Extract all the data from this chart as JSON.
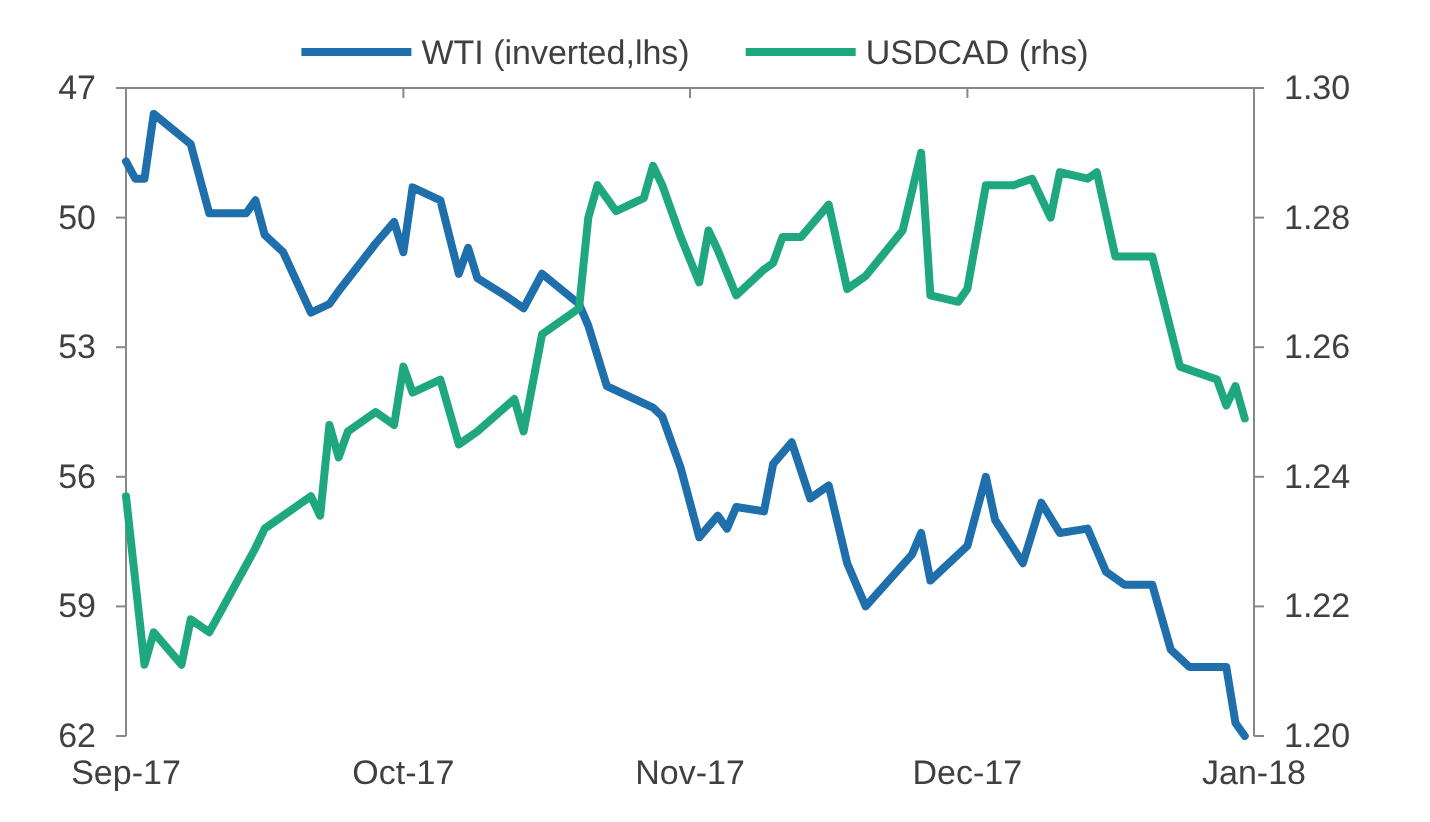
{
  "chart_data": {
    "type": "line",
    "xlim": [
      "2017-09-01",
      "2018-01-01"
    ],
    "xticks": [
      {
        "value": "2017-09-01",
        "label": "Sep-17"
      },
      {
        "value": "2017-10-01",
        "label": "Oct-17"
      },
      {
        "value": "2017-11-01",
        "label": "Nov-17"
      },
      {
        "value": "2017-12-01",
        "label": "Dec-17"
      },
      {
        "value": "2018-01-01",
        "label": "Jan-18"
      }
    ],
    "ylim": [
      62,
      47
    ],
    "yticks": [
      47,
      50,
      53,
      56,
      59,
      62
    ],
    "y2lim": [
      1.2,
      1.3
    ],
    "y2ticks": [
      {
        "value": 1.2,
        "label": "1.20"
      },
      1.22,
      1.24,
      1.26,
      1.28,
      {
        "value": 1.3,
        "label": "1.30"
      }
    ],
    "legend": "top",
    "grid": false,
    "marker": "none",
    "line_style": "solid",
    "series": [
      {
        "name": "WTI (inverted,lhs)",
        "color": "#1f6fad",
        "x": [
          "2017-09-01",
          "2017-09-02",
          "2017-09-03",
          "2017-09-04",
          "2017-09-08",
          "2017-09-10",
          "2017-09-14",
          "2017-09-15",
          "2017-09-16",
          "2017-09-18",
          "2017-09-21",
          "2017-09-23",
          "2017-09-24",
          "2017-09-28",
          "2017-09-30",
          "2017-10-01",
          "2017-10-02",
          "2017-10-05",
          "2017-10-07",
          "2017-10-08",
          "2017-10-09",
          "2017-10-12",
          "2017-10-14",
          "2017-10-16",
          "2017-10-20",
          "2017-10-21",
          "2017-10-23",
          "2017-10-28",
          "2017-10-29",
          "2017-10-31",
          "2017-11-02",
          "2017-11-04",
          "2017-11-05",
          "2017-11-06",
          "2017-11-09",
          "2017-11-10",
          "2017-11-12",
          "2017-11-14",
          "2017-11-16",
          "2017-11-18",
          "2017-11-20",
          "2017-11-25",
          "2017-11-26",
          "2017-11-27",
          "2017-12-01",
          "2017-12-03",
          "2017-12-04",
          "2017-12-07",
          "2017-12-09",
          "2017-12-11",
          "2017-12-14",
          "2017-12-16",
          "2017-12-18",
          "2017-12-21",
          "2017-12-23",
          "2017-12-25",
          "2017-12-29",
          "2017-12-30",
          "2017-12-31"
        ],
        "values": [
          48.7,
          49.1,
          49.1,
          47.6,
          48.3,
          49.9,
          49.9,
          49.6,
          50.4,
          50.8,
          52.2,
          52.0,
          51.7,
          50.6,
          50.1,
          50.8,
          49.3,
          49.6,
          51.3,
          50.7,
          51.4,
          51.8,
          52.1,
          51.3,
          52.0,
          52.5,
          53.9,
          54.4,
          54.6,
          55.8,
          57.4,
          56.9,
          57.2,
          56.7,
          56.8,
          55.7,
          55.2,
          56.5,
          56.2,
          58.0,
          59.0,
          57.8,
          57.3,
          58.4,
          57.6,
          56.0,
          57.0,
          58.0,
          56.6,
          57.3,
          57.2,
          58.2,
          58.5,
          58.5,
          60.0,
          60.4,
          60.4,
          61.7,
          62.0
        ]
      },
      {
        "name": "USDCAD (rhs)",
        "color": "#1fa880",
        "axis": "y2",
        "x": [
          "2017-09-01",
          "2017-09-03",
          "2017-09-04",
          "2017-09-07",
          "2017-09-08",
          "2017-09-10",
          "2017-09-15",
          "2017-09-16",
          "2017-09-21",
          "2017-09-22",
          "2017-09-23",
          "2017-09-24",
          "2017-09-25",
          "2017-09-28",
          "2017-09-30",
          "2017-10-01",
          "2017-10-02",
          "2017-10-05",
          "2017-10-07",
          "2017-10-09",
          "2017-10-13",
          "2017-10-14",
          "2017-10-16",
          "2017-10-20",
          "2017-10-21",
          "2017-10-22",
          "2017-10-24",
          "2017-10-27",
          "2017-10-28",
          "2017-10-29",
          "2017-10-31",
          "2017-11-02",
          "2017-11-03",
          "2017-11-04",
          "2017-11-06",
          "2017-11-09",
          "2017-11-10",
          "2017-11-11",
          "2017-11-13",
          "2017-11-16",
          "2017-11-18",
          "2017-11-20",
          "2017-11-24",
          "2017-11-26",
          "2017-11-27",
          "2017-11-30",
          "2017-12-01",
          "2017-12-03",
          "2017-12-06",
          "2017-12-08",
          "2017-12-10",
          "2017-12-11",
          "2017-12-14",
          "2017-12-15",
          "2017-12-17",
          "2017-12-21",
          "2017-12-24",
          "2017-12-28",
          "2017-12-29",
          "2017-12-30",
          "2017-12-31"
        ],
        "values": [
          1.237,
          1.211,
          1.216,
          1.211,
          1.218,
          1.216,
          1.229,
          1.232,
          1.237,
          1.234,
          1.248,
          1.243,
          1.247,
          1.25,
          1.248,
          1.257,
          1.253,
          1.255,
          1.245,
          1.247,
          1.252,
          1.247,
          1.262,
          1.266,
          1.28,
          1.285,
          1.281,
          1.283,
          1.288,
          1.285,
          1.277,
          1.27,
          1.278,
          1.275,
          1.268,
          1.272,
          1.273,
          1.277,
          1.277,
          1.282,
          1.269,
          1.271,
          1.278,
          1.29,
          1.268,
          1.267,
          1.269,
          1.285,
          1.285,
          1.286,
          1.28,
          1.287,
          1.286,
          1.287,
          1.274,
          1.274,
          1.257,
          1.255,
          1.251,
          1.254,
          1.249
        ]
      }
    ]
  }
}
